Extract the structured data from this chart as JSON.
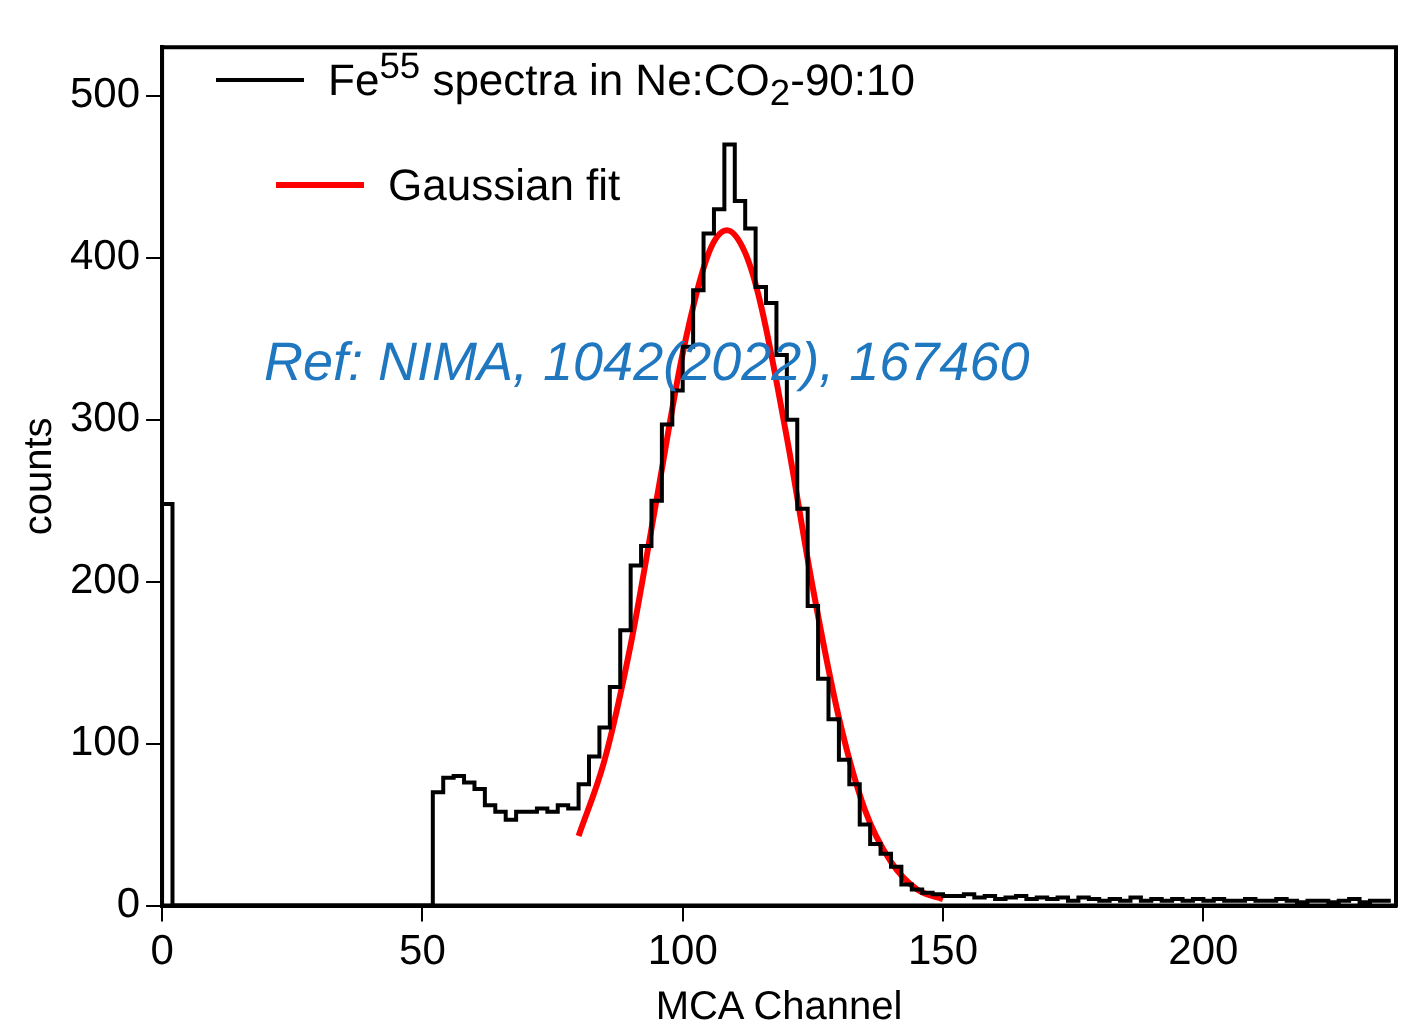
{
  "chart_data": {
    "type": "histogram",
    "xlabel": "MCA Channel",
    "ylabel": "counts",
    "bins": [
      0,
      2,
      4,
      6,
      8,
      10,
      12,
      14,
      16,
      18,
      20,
      22,
      24,
      26,
      28,
      30,
      32,
      34,
      36,
      38,
      40,
      42,
      44,
      46,
      48,
      50,
      52,
      54,
      56,
      58,
      60,
      62,
      64,
      66,
      68,
      70,
      72,
      74,
      76,
      78,
      80,
      82,
      84,
      86,
      88,
      90,
      92,
      94,
      96,
      98,
      100,
      102,
      104,
      106,
      108,
      110,
      112,
      114,
      116,
      118,
      120,
      122,
      124,
      126,
      128,
      130,
      132,
      134,
      136,
      138,
      140,
      142,
      144,
      146,
      148,
      150,
      152,
      154,
      156,
      158,
      160,
      162,
      164,
      166,
      168,
      170,
      172,
      174,
      176,
      178,
      180,
      182,
      184,
      186,
      188,
      190,
      192,
      194,
      196,
      198,
      200,
      202,
      204,
      206,
      208,
      210,
      212,
      214,
      216,
      218,
      220,
      222,
      224,
      226,
      228,
      230,
      232,
      234,
      236
    ],
    "series": [
      {
        "name": "Fe$^{55}$ spectra in Ne:CO$_{2}$-90:10",
        "color": "#000000",
        "values": [
          248,
          0,
          0,
          0,
          0,
          0,
          0,
          0,
          0,
          0,
          0,
          0,
          0,
          0,
          0,
          0,
          0,
          0,
          0,
          0,
          0,
          0,
          0,
          0,
          0,
          0,
          70,
          79,
          80,
          76,
          72,
          62,
          58,
          53,
          58,
          58,
          60,
          58,
          62,
          60,
          75,
          92,
          110,
          135,
          170,
          210,
          222,
          250,
          297,
          318,
          345,
          380,
          415,
          430,
          470,
          435,
          418,
          382,
          372,
          340,
          300,
          245,
          185,
          140,
          115,
          90,
          75,
          50,
          38,
          32,
          24,
          13,
          10,
          8,
          7,
          6,
          6,
          7,
          5,
          6,
          4,
          5,
          6,
          4,
          5,
          4,
          5,
          3,
          5,
          4,
          3,
          4,
          3,
          5,
          3,
          4,
          3,
          4,
          3,
          4,
          3,
          4,
          3,
          3,
          4,
          3,
          3,
          4,
          3,
          2,
          3,
          3,
          2,
          3,
          4,
          2,
          3,
          3
        ]
      },
      {
        "type": "line",
        "name": "Gaussian fit",
        "color": "#ff0000",
        "x": [
          80,
          85,
          90,
          95,
          100,
          105,
          108.5,
          112,
          115,
          120,
          125,
          130,
          135,
          140,
          145,
          150
        ],
        "values": [
          43,
          90,
          161,
          251,
          341,
          403,
          417,
          403,
          371,
          289,
          196,
          116,
          59,
          27,
          10,
          4
        ]
      }
    ],
    "xlim": [
      0,
      237
    ],
    "xticks": [
      0,
      50,
      100,
      150,
      200
    ],
    "ylim": [
      0,
      530
    ],
    "yticks": [
      0,
      100,
      200,
      300,
      400,
      500
    ],
    "grid": false,
    "legend": "top left",
    "marker": "none",
    "annotations": [
      "Ref: NIMA, 1042(2022), 167460"
    ]
  }
}
